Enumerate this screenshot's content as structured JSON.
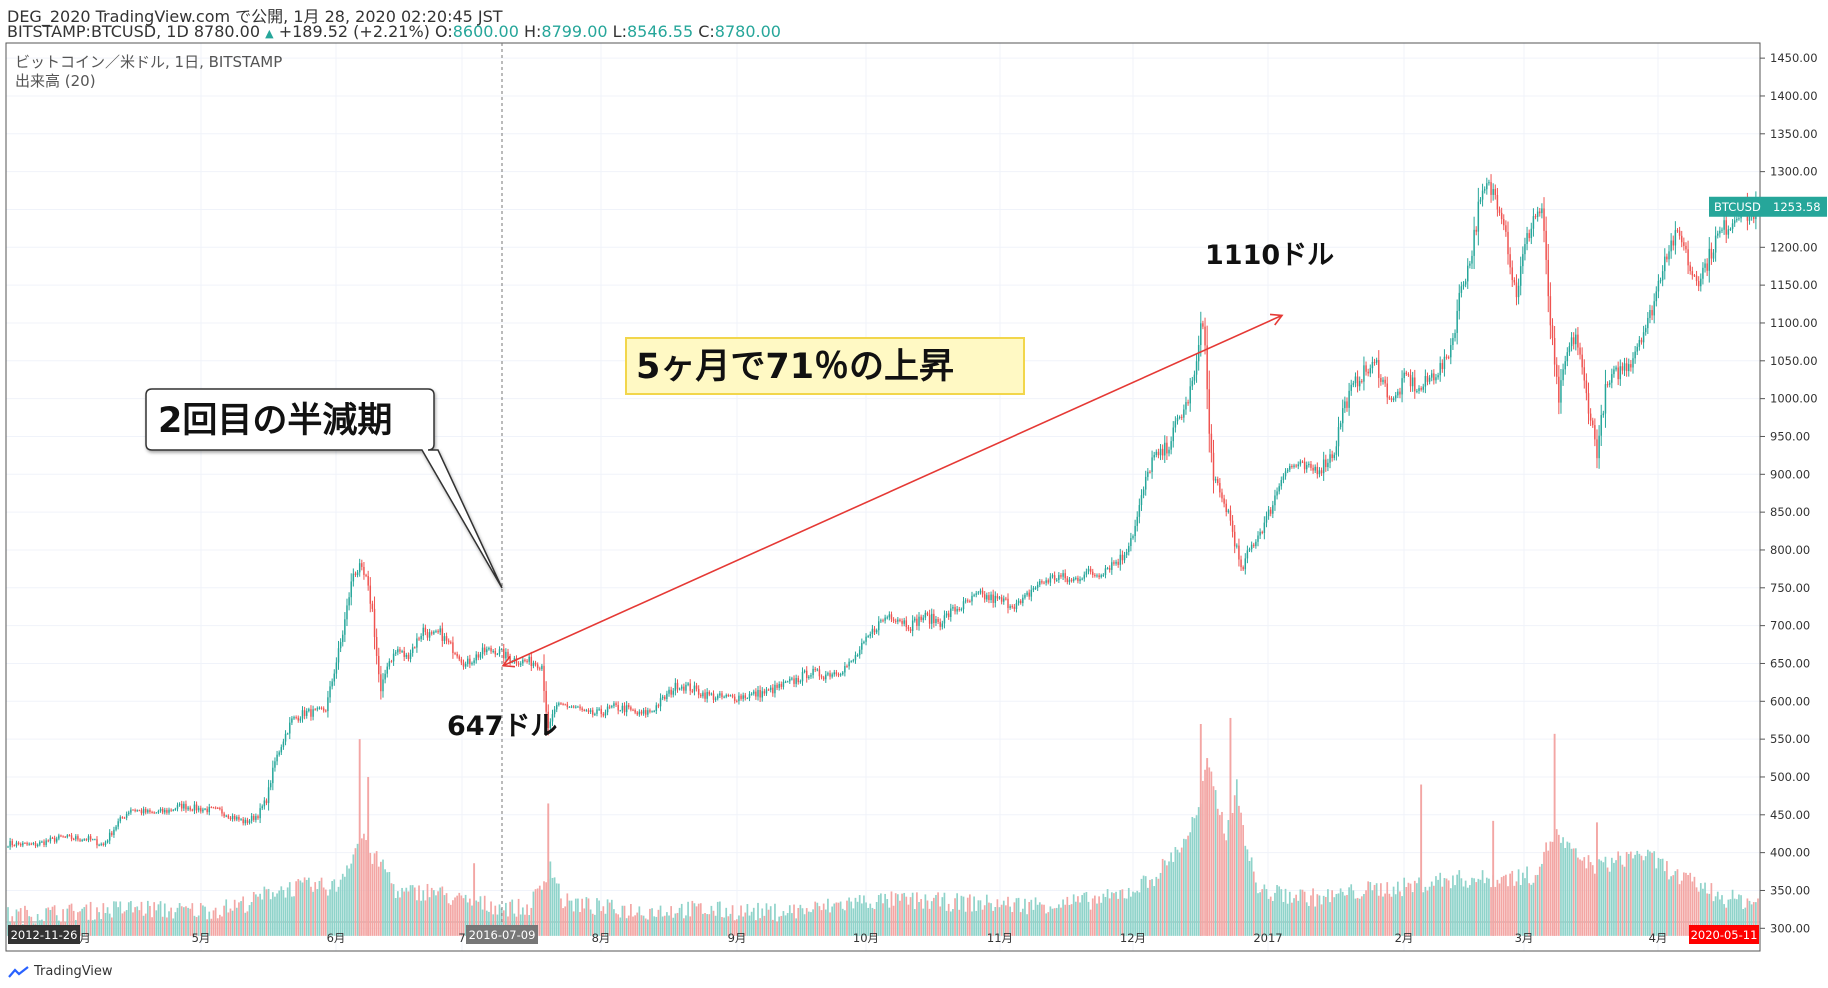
{
  "header": {
    "line1": "DEG_2020 TradingView.com で公開, 1月 28, 2020 02:20:45 JST",
    "symbol": "BITSTAMP:BTCUSD, 1D 8780.00",
    "change_arrow": "▲",
    "change": "+189.52 (+2.21%)",
    "o_label": "O:",
    "o_val": "8600.00",
    "h_label": "H:",
    "h_val": "8799.00",
    "l_label": "L:",
    "l_val": "8546.55",
    "c_label": "C:",
    "c_val": "8780.00"
  },
  "legend": {
    "title": "ビットコイン／米ドル, 1日, BITSTAMP",
    "volume": "出来高 (20)"
  },
  "footer": {
    "brand": "TradingView"
  },
  "chart_data": {
    "type": "candlestick",
    "y_range": [
      270,
      1470
    ],
    "y_ticks": [
      300,
      350,
      400,
      450,
      500,
      550,
      600,
      650,
      700,
      750,
      800,
      850,
      900,
      950,
      1000,
      1050,
      1100,
      1150,
      1200,
      1250,
      1300,
      1350,
      1400,
      1450
    ],
    "x_ticks": [
      "2012-11-26",
      "5月",
      "6月",
      "7",
      "2016-07-09",
      "8月",
      "9月",
      "10月",
      "11月",
      "12月",
      "2017",
      "2月",
      "3月",
      "4月",
      "2020-05-11"
    ],
    "x_tick_ago_label": "月",
    "price_tag": {
      "label": "BTCUSD",
      "value": "1253.58"
    },
    "crosshair_date": "2016-07-09",
    "colors": {
      "up": "#26a69a",
      "down": "#ef5350",
      "up_vol": "#8fd3ca",
      "down_vol": "#f3a6a4",
      "arrow": "#e53935",
      "note_bg": "#fff9c4",
      "note_border": "#f2d64b"
    },
    "price_path": [
      [
        0,
        412
      ],
      [
        12,
        410
      ],
      [
        25,
        420
      ],
      [
        38,
        418
      ],
      [
        45,
        410
      ],
      [
        52,
        440
      ],
      [
        58,
        458
      ],
      [
        62,
        455
      ],
      [
        68,
        452
      ],
      [
        75,
        455
      ],
      [
        82,
        462
      ],
      [
        90,
        458
      ],
      [
        100,
        455
      ],
      [
        108,
        445
      ],
      [
        112,
        440
      ],
      [
        118,
        450
      ],
      [
        122,
        470
      ],
      [
        126,
        520
      ],
      [
        130,
        550
      ],
      [
        134,
        575
      ],
      [
        140,
        585
      ],
      [
        146,
        585
      ],
      [
        150,
        590
      ],
      [
        154,
        640
      ],
      [
        158,
        690
      ],
      [
        161,
        740
      ],
      [
        163,
        770
      ],
      [
        166,
        775
      ],
      [
        169,
        760
      ],
      [
        172,
        720
      ],
      [
        174,
        660
      ],
      [
        176,
        610
      ],
      [
        179,
        650
      ],
      [
        184,
        668
      ],
      [
        188,
        658
      ],
      [
        192,
        675
      ],
      [
        196,
        695
      ],
      [
        200,
        685
      ],
      [
        204,
        690
      ],
      [
        208,
        675
      ],
      [
        212,
        665
      ],
      [
        216,
        648
      ],
      [
        220,
        658
      ],
      [
        225,
        666
      ],
      [
        230,
        668
      ],
      [
        236,
        658
      ],
      [
        242,
        653
      ],
      [
        248,
        652
      ],
      [
        252,
        648
      ],
      [
        255,
        560
      ],
      [
        258,
        590
      ],
      [
        263,
        595
      ],
      [
        268,
        592
      ],
      [
        274,
        582
      ],
      [
        280,
        585
      ],
      [
        286,
        592
      ],
      [
        292,
        590
      ],
      [
        298,
        582
      ],
      [
        304,
        588
      ],
      [
        310,
        605
      ],
      [
        316,
        622
      ],
      [
        322,
        618
      ],
      [
        328,
        610
      ],
      [
        335,
        605
      ],
      [
        342,
        605
      ],
      [
        350,
        608
      ],
      [
        358,
        612
      ],
      [
        365,
        620
      ],
      [
        372,
        628
      ],
      [
        378,
        638
      ],
      [
        385,
        635
      ],
      [
        392,
        640
      ],
      [
        398,
        650
      ],
      [
        404,
        675
      ],
      [
        410,
        700
      ],
      [
        416,
        715
      ],
      [
        420,
        710
      ],
      [
        426,
        700
      ],
      [
        432,
        712
      ],
      [
        440,
        705
      ],
      [
        446,
        720
      ],
      [
        452,
        728
      ],
      [
        458,
        740
      ],
      [
        465,
        735
      ],
      [
        472,
        730
      ],
      [
        478,
        728
      ],
      [
        484,
        750
      ],
      [
        490,
        760
      ],
      [
        496,
        765
      ],
      [
        502,
        758
      ],
      [
        508,
        770
      ],
      [
        514,
        768
      ],
      [
        520,
        780
      ],
      [
        526,
        790
      ],
      [
        532,
        830
      ],
      [
        536,
        880
      ],
      [
        540,
        920
      ],
      [
        544,
        925
      ],
      [
        548,
        940
      ],
      [
        552,
        970
      ],
      [
        556,
        990
      ],
      [
        559,
        1020
      ],
      [
        561,
        1040
      ],
      [
        563,
        1110
      ],
      [
        565,
        1070
      ],
      [
        567,
        950
      ],
      [
        569,
        900
      ],
      [
        572,
        870
      ],
      [
        576,
        850
      ],
      [
        580,
        800
      ],
      [
        582,
        770
      ],
      [
        586,
        800
      ],
      [
        590,
        820
      ],
      [
        594,
        840
      ],
      [
        598,
        870
      ],
      [
        602,
        905
      ],
      [
        608,
        912
      ],
      [
        614,
        905
      ],
      [
        620,
        910
      ],
      [
        626,
        930
      ],
      [
        630,
        985
      ],
      [
        634,
        1010
      ],
      [
        638,
        1030
      ],
      [
        642,
        1038
      ],
      [
        646,
        1045
      ],
      [
        650,
        1015
      ],
      [
        654,
        995
      ],
      [
        660,
        1030
      ],
      [
        666,
        1010
      ],
      [
        672,
        1030
      ],
      [
        678,
        1045
      ],
      [
        682,
        1080
      ],
      [
        686,
        1150
      ],
      [
        690,
        1180
      ],
      [
        694,
        1250
      ],
      [
        698,
        1280
      ],
      [
        702,
        1270
      ],
      [
        706,
        1240
      ],
      [
        708,
        1200
      ],
      [
        710,
        1160
      ],
      [
        712,
        1140
      ],
      [
        716,
        1200
      ],
      [
        720,
        1240
      ],
      [
        724,
        1250
      ],
      [
        728,
        1100
      ],
      [
        730,
        1040
      ],
      [
        732,
        1000
      ],
      [
        736,
        1060
      ],
      [
        740,
        1085
      ],
      [
        744,
        1020
      ],
      [
        748,
        960
      ],
      [
        750,
        930
      ],
      [
        754,
        1010
      ],
      [
        758,
        1030
      ],
      [
        762,
        1040
      ],
      [
        766,
        1050
      ],
      [
        770,
        1080
      ],
      [
        774,
        1100
      ],
      [
        778,
        1140
      ],
      [
        782,
        1190
      ],
      [
        786,
        1210
      ],
      [
        790,
        1215
      ],
      [
        794,
        1170
      ],
      [
        798,
        1160
      ],
      [
        802,
        1180
      ],
      [
        806,
        1210
      ],
      [
        810,
        1225
      ],
      [
        814,
        1235
      ],
      [
        818,
        1255
      ],
      [
        822,
        1240
      ],
      [
        825,
        1250
      ]
    ],
    "volume_path": [
      [
        0,
        312
      ],
      [
        20,
        315
      ],
      [
        40,
        318
      ],
      [
        60,
        322
      ],
      [
        80,
        318
      ],
      [
        100,
        320
      ],
      [
        115,
        330
      ],
      [
        125,
        345
      ],
      [
        140,
        350
      ],
      [
        155,
        350
      ],
      [
        163,
        395
      ],
      [
        168,
        420
      ],
      [
        172,
        390
      ],
      [
        178,
        375
      ],
      [
        184,
        340
      ],
      [
        200,
        345
      ],
      [
        215,
        330
      ],
      [
        230,
        325
      ],
      [
        245,
        320
      ],
      [
        252,
        350
      ],
      [
        256,
        380
      ],
      [
        262,
        330
      ],
      [
        280,
        322
      ],
      [
        300,
        318
      ],
      [
        320,
        320
      ],
      [
        340,
        318
      ],
      [
        360,
        316
      ],
      [
        380,
        320
      ],
      [
        400,
        330
      ],
      [
        420,
        332
      ],
      [
        440,
        330
      ],
      [
        460,
        328
      ],
      [
        480,
        326
      ],
      [
        500,
        328
      ],
      [
        520,
        335
      ],
      [
        530,
        345
      ],
      [
        540,
        360
      ],
      [
        548,
        385
      ],
      [
        555,
        410
      ],
      [
        562,
        450
      ],
      [
        566,
        510
      ],
      [
        570,
        470
      ],
      [
        575,
        420
      ],
      [
        580,
        480
      ],
      [
        585,
        400
      ],
      [
        590,
        345
      ],
      [
        600,
        340
      ],
      [
        620,
        335
      ],
      [
        640,
        345
      ],
      [
        660,
        350
      ],
      [
        680,
        360
      ],
      [
        700,
        360
      ],
      [
        720,
        365
      ],
      [
        730,
        420
      ],
      [
        740,
        390
      ],
      [
        750,
        375
      ],
      [
        760,
        385
      ],
      [
        770,
        395
      ],
      [
        780,
        380
      ],
      [
        790,
        360
      ],
      [
        800,
        350
      ],
      [
        810,
        335
      ],
      [
        825,
        330
      ]
    ],
    "volume_spikes": [
      [
        166,
        550
      ],
      [
        170,
        500
      ],
      [
        220,
        386
      ],
      [
        255,
        465
      ],
      [
        563,
        570
      ],
      [
        566,
        525
      ],
      [
        577,
        578
      ],
      [
        667,
        490
      ],
      [
        701,
        442
      ],
      [
        730,
        557
      ],
      [
        750,
        440
      ]
    ],
    "annotations": {
      "halving": "2回目の半減期",
      "start_price": "647ドル",
      "end_price": "1110ドル",
      "gain": "5ヶ月で71％の上昇"
    }
  }
}
